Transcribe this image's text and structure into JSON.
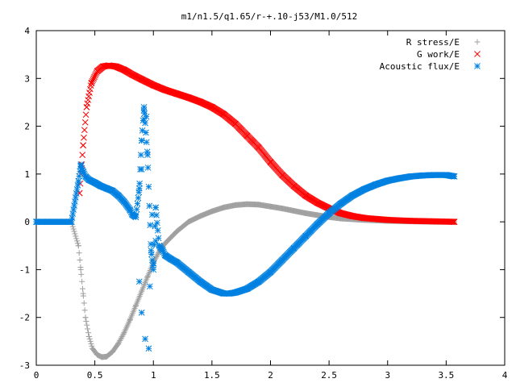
{
  "chart_data": {
    "type": "scatter",
    "title": "m1/n1.5/q1.65/r-+.10-j53/M1.0/512",
    "xlabel": "",
    "ylabel": "",
    "xlim": [
      0,
      4
    ],
    "ylim": [
      -3,
      4
    ],
    "x_ticks": [
      "0",
      "0.5",
      "1",
      "1.5",
      "2",
      "2.5",
      "3",
      "3.5",
      "4"
    ],
    "y_ticks": [
      "-3",
      "-2",
      "-1",
      "0",
      "1",
      "2",
      "3",
      "4"
    ],
    "grid": false,
    "legend_position": "top-right",
    "series": [
      {
        "name": "R stress/E",
        "marker": "plus",
        "color": "#a0a0a0",
        "x": [
          0.0,
          0.1,
          0.2,
          0.3,
          0.36,
          0.38,
          0.4,
          0.42,
          0.45,
          0.48,
          0.52,
          0.56,
          0.6,
          0.65,
          0.7,
          0.75,
          0.8,
          0.85,
          0.9,
          0.95,
          1.0,
          1.05,
          1.1,
          1.2,
          1.3,
          1.4,
          1.5,
          1.6,
          1.7,
          1.8,
          1.9,
          2.0,
          2.1,
          2.2,
          2.3,
          2.4,
          2.5,
          2.6,
          2.8,
          3.0,
          3.2,
          3.4,
          3.57
        ],
        "y": [
          0.0,
          0.0,
          0.0,
          0.0,
          -0.5,
          -1.0,
          -1.5,
          -2.0,
          -2.4,
          -2.65,
          -2.78,
          -2.83,
          -2.82,
          -2.72,
          -2.55,
          -2.32,
          -2.05,
          -1.75,
          -1.45,
          -1.15,
          -0.85,
          -0.62,
          -0.45,
          -0.2,
          0.0,
          0.12,
          0.22,
          0.3,
          0.35,
          0.37,
          0.36,
          0.32,
          0.28,
          0.23,
          0.18,
          0.14,
          0.1,
          0.07,
          0.04,
          0.02,
          0.01,
          0.0,
          0.0
        ]
      },
      {
        "name": "G work/E",
        "marker": "cross",
        "color": "#ff0000",
        "x": [
          0.37,
          0.4,
          0.43,
          0.47,
          0.52,
          0.57,
          0.62,
          0.68,
          0.75,
          0.82,
          0.9,
          1.0,
          1.1,
          1.2,
          1.3,
          1.4,
          1.5,
          1.6,
          1.7,
          1.8,
          1.9,
          2.0,
          2.1,
          2.2,
          2.3,
          2.4,
          2.5,
          2.6,
          2.7,
          2.8,
          3.0,
          3.2,
          3.4,
          3.57
        ],
        "y": [
          0.6,
          1.6,
          2.4,
          2.9,
          3.15,
          3.25,
          3.27,
          3.25,
          3.18,
          3.08,
          2.98,
          2.86,
          2.76,
          2.68,
          2.6,
          2.51,
          2.4,
          2.25,
          2.05,
          1.8,
          1.55,
          1.25,
          0.98,
          0.75,
          0.55,
          0.4,
          0.28,
          0.18,
          0.12,
          0.08,
          0.04,
          0.02,
          0.01,
          0.0
        ]
      },
      {
        "name": "Acoustic flux/E",
        "marker": "star",
        "color": "#0080e0",
        "x": [
          0.0,
          0.1,
          0.2,
          0.3,
          0.36,
          0.38,
          0.4,
          0.42,
          0.45,
          0.5,
          0.55,
          0.6,
          0.65,
          0.7,
          0.75,
          0.8,
          0.82,
          0.85,
          0.88,
          0.9,
          0.92,
          0.95,
          0.98,
          1.0,
          1.02,
          1.05,
          1.08,
          1.1,
          1.15,
          1.2,
          1.3,
          1.4,
          1.5,
          1.6,
          1.65,
          1.7,
          1.8,
          1.9,
          2.0,
          2.1,
          2.2,
          2.3,
          2.4,
          2.5,
          2.6,
          2.7,
          2.8,
          2.9,
          3.0,
          3.1,
          3.2,
          3.3,
          3.4,
          3.5,
          3.57
        ],
        "y": [
          0.0,
          0.0,
          0.0,
          0.0,
          0.85,
          1.2,
          1.05,
          0.95,
          0.88,
          0.82,
          0.75,
          0.7,
          0.65,
          0.55,
          0.42,
          0.25,
          0.15,
          0.1,
          0.7,
          1.7,
          2.4,
          1.4,
          -0.6,
          -1.0,
          0.3,
          -0.5,
          -0.6,
          -0.7,
          -0.78,
          -0.85,
          -1.05,
          -1.25,
          -1.42,
          -1.5,
          -1.5,
          -1.48,
          -1.4,
          -1.25,
          -1.05,
          -0.8,
          -0.55,
          -0.3,
          -0.05,
          0.18,
          0.38,
          0.55,
          0.68,
          0.78,
          0.86,
          0.91,
          0.95,
          0.97,
          0.98,
          0.98,
          0.95
        ]
      },
      {
        "name": "",
        "marker": "star",
        "color": "#0080e0",
        "x": [
          0.88,
          0.9,
          0.92,
          0.94,
          0.97,
          0.99,
          1.02,
          0.9,
          0.93,
          0.96
        ],
        "y": [
          -1.25,
          1.1,
          2.15,
          2.2,
          -1.35,
          0.15,
          -0.4,
          -1.9,
          -2.45,
          -2.65
        ]
      }
    ]
  }
}
